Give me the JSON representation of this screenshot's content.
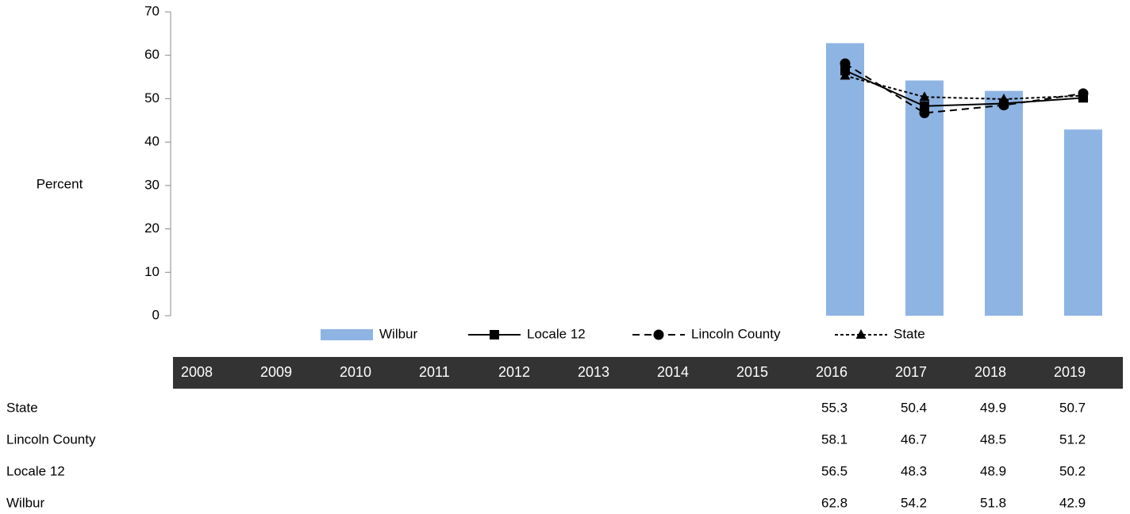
{
  "chart_data": {
    "type": "combo",
    "ylabel": "Percent",
    "categories": [
      "2008",
      "2009",
      "2010",
      "2011",
      "2012",
      "2013",
      "2014",
      "2015",
      "2016",
      "2017",
      "2018",
      "2019"
    ],
    "series": [
      {
        "name": "Wilbur",
        "type": "bar",
        "color": "#8eb4e3",
        "values": [
          null,
          null,
          null,
          null,
          null,
          null,
          null,
          null,
          62.8,
          54.2,
          51.8,
          42.9
        ]
      },
      {
        "name": "Locale 12",
        "type": "line",
        "color": "#000000",
        "dash": "solid",
        "marker": "square",
        "values": [
          null,
          null,
          null,
          null,
          null,
          null,
          null,
          null,
          56.5,
          48.3,
          48.9,
          50.2
        ]
      },
      {
        "name": "Lincoln County",
        "type": "line",
        "color": "#000000",
        "dash": "dashed",
        "marker": "circle",
        "values": [
          null,
          null,
          null,
          null,
          null,
          null,
          null,
          null,
          58.1,
          46.7,
          48.5,
          51.2
        ]
      },
      {
        "name": "State",
        "type": "line",
        "color": "#000000",
        "dash": "dotted",
        "marker": "triangle",
        "values": [
          null,
          null,
          null,
          null,
          null,
          null,
          null,
          null,
          55.3,
          50.4,
          49.9,
          50.7
        ]
      }
    ],
    "ylim": [
      0,
      70
    ],
    "yticks": [
      0,
      10,
      20,
      30,
      40,
      50,
      60,
      70
    ],
    "grid": false,
    "legend": "bottom"
  }
}
